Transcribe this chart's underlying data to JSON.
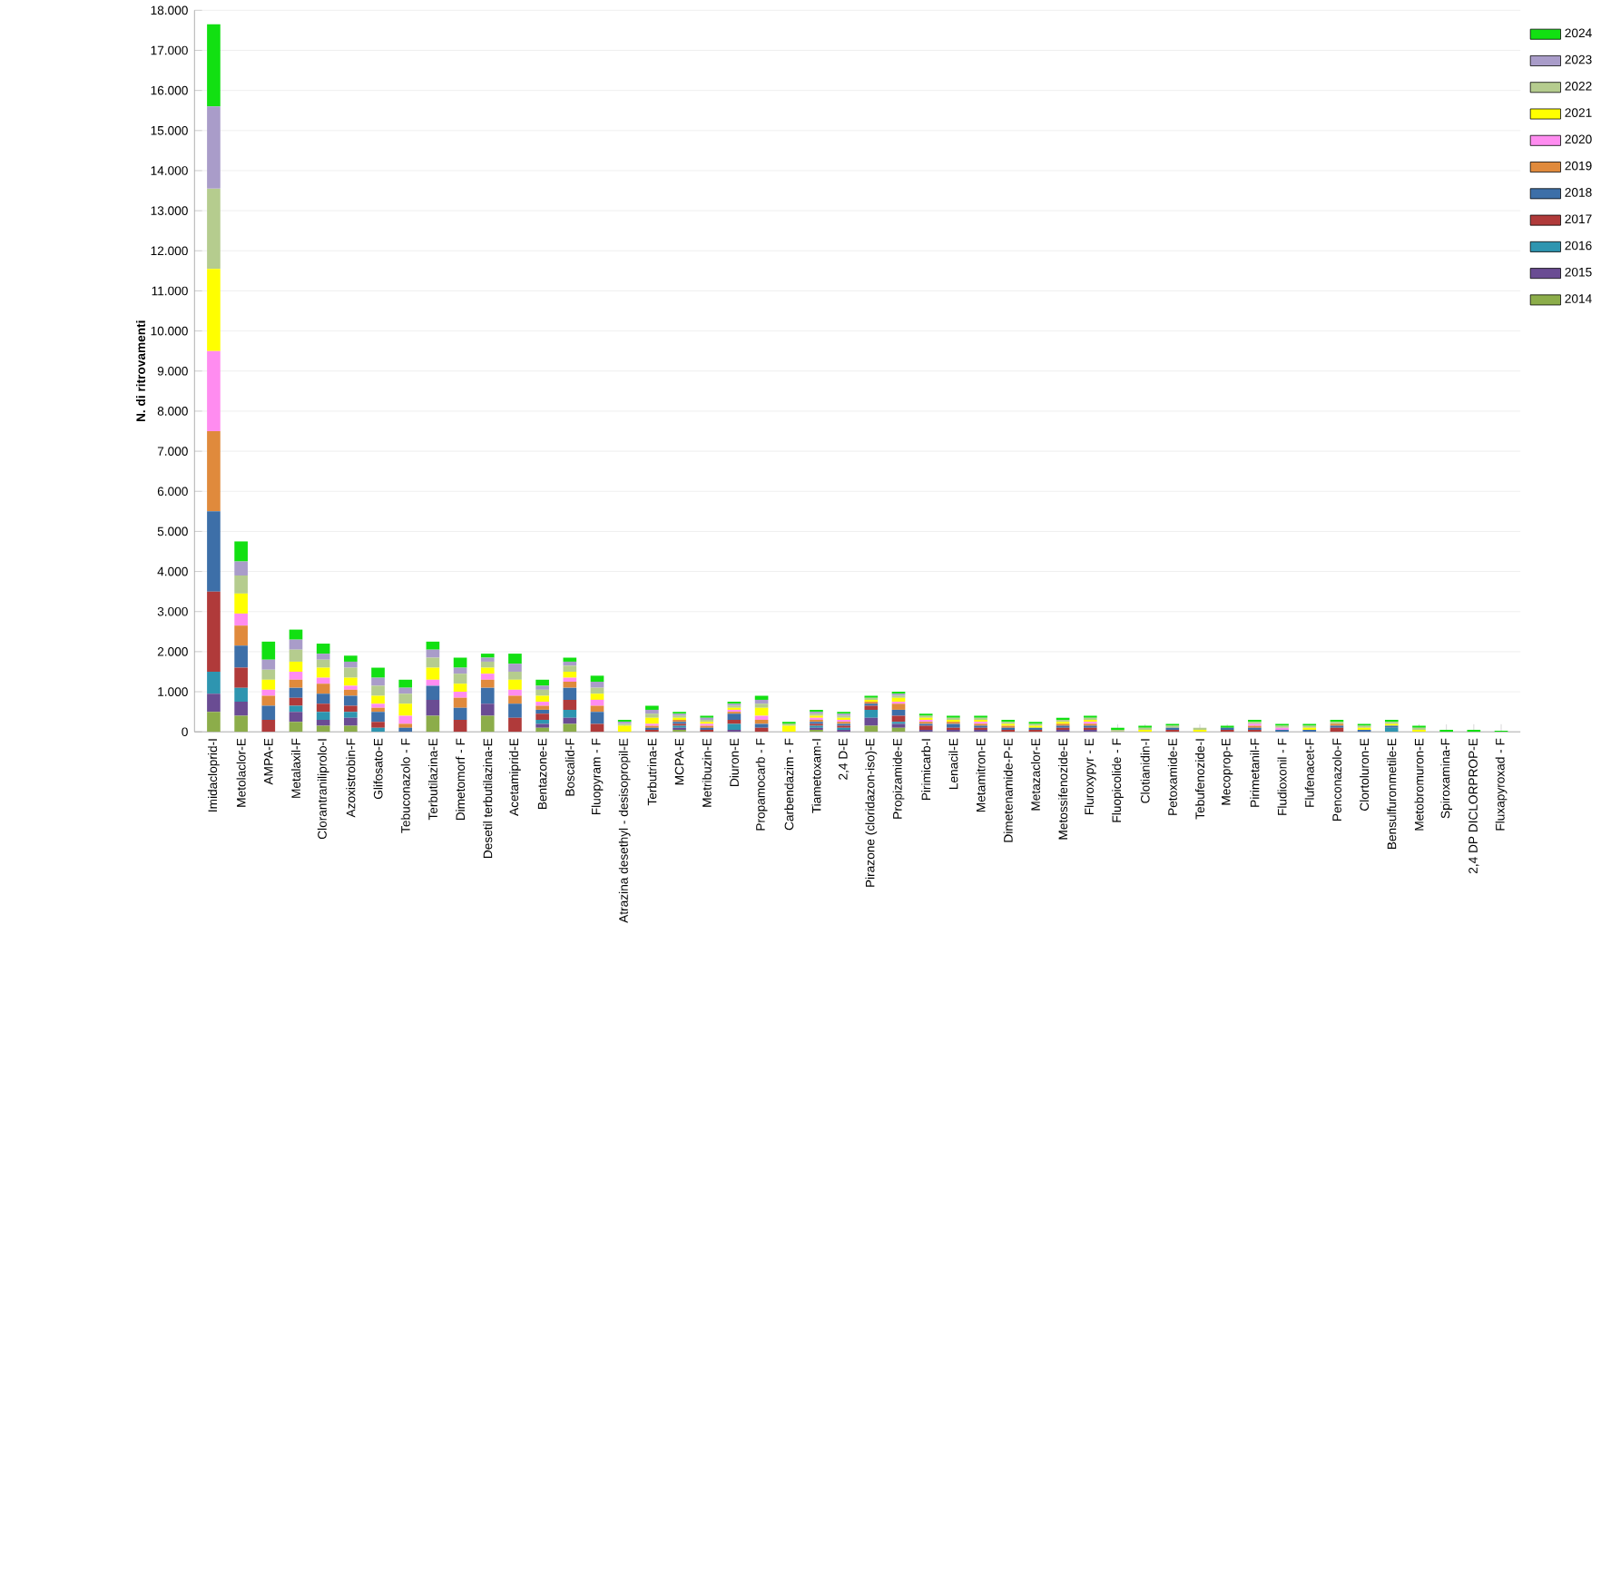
{
  "chart_data": {
    "type": "bar",
    "stacked": true,
    "ylabel": "N. di ritrovamenti",
    "grid": "y",
    "legend": "right",
    "categories": [
      "Imidacloprid-I",
      "Metolaclor-E",
      "AMPA-E",
      "Metalaxil-F",
      "Clorantraniliprolo-I",
      "Azoxistrobin-F",
      "Glifosato-E",
      "Tebuconazolo - F",
      "Terbutilazina-E",
      "Dimetomorf - F",
      "Desetil terbutilazina-E",
      "Acetamiprid-E",
      "Bentazone-E",
      "Boscalid-F",
      "Fluopyram - F",
      "Atrazina desethyl - desisopropil-E",
      "Terbutrina-E",
      "MCPA-E",
      "Metribuzin-E",
      "Diuron-E",
      "Propamocarb - F",
      "Carbendazim - F",
      "Tiametoxam-I",
      "2,4 D-E",
      "Pirazone (cloridazon-iso)-E",
      "Propizamide-E",
      "Pirimicarb-I",
      "Lenacil-E",
      "Metamitron-E",
      "Dimetenamide-P-E",
      "Metazaclor-E",
      "Metossifenozide-E",
      "Fluroxypyr - E",
      "Fluopicolide - F",
      "Clotianidin-I",
      "Petoxamide-E",
      "Tebufenozide-I",
      "Mecoprop-E",
      "Pirimetanil-F",
      "Fludioxonil - F",
      "Flufenacet-F",
      "Penconazolo-F",
      "Clortoluron-E",
      "Bensulfuronmetile-E",
      "Metobromuron-E",
      "Spiroxamina-F",
      "2,4 DP DICLORPROP-E",
      "Fluxapyroxad - F"
    ],
    "ylim": [
      0,
      18000
    ],
    "yticks": [
      0,
      {
        "value": 1000,
        "label": "1.000"
      },
      {
        "value": 2000,
        "label": "2.000"
      },
      {
        "value": 3000,
        "label": "3.000"
      },
      {
        "value": 4000,
        "label": "4.000"
      },
      {
        "value": 5000,
        "label": "5.000"
      },
      {
        "value": 6000,
        "label": "6.000"
      },
      {
        "value": 7000,
        "label": "7.000"
      },
      {
        "value": 8000,
        "label": "8.000"
      },
      {
        "value": 9000,
        "label": "9.000"
      },
      {
        "value": 10000,
        "label": "10.000"
      },
      {
        "value": 11000,
        "label": "11.000"
      },
      {
        "value": 12000,
        "label": "12.000"
      },
      {
        "value": 13000,
        "label": "13.000"
      },
      {
        "value": 14000,
        "label": "14.000"
      },
      {
        "value": 15000,
        "label": "15.000"
      },
      {
        "value": 16000,
        "label": "16.000"
      },
      {
        "value": 17000,
        "label": "17.000"
      },
      {
        "value": 18000,
        "label": "18.000"
      }
    ],
    "series": [
      {
        "name": "2014",
        "color": "#8cad4a",
        "values": [
          500,
          400,
          0,
          250,
          150,
          150,
          0,
          0,
          400,
          0,
          400,
          0,
          100,
          200,
          0,
          0,
          0,
          50,
          0,
          0,
          0,
          0,
          50,
          0,
          150,
          100,
          0,
          0,
          0,
          0,
          0,
          0,
          0,
          0,
          0,
          0,
          0,
          0,
          0,
          0,
          0,
          0,
          0,
          0,
          0,
          0,
          0,
          0
        ]
      },
      {
        "name": "2015",
        "color": "#6a4c93",
        "values": [
          450,
          350,
          0,
          250,
          150,
          200,
          0,
          0,
          400,
          0,
          300,
          0,
          100,
          150,
          0,
          0,
          0,
          50,
          0,
          50,
          0,
          0,
          50,
          50,
          200,
          100,
          50,
          50,
          50,
          0,
          0,
          50,
          50,
          0,
          0,
          0,
          0,
          0,
          0,
          0,
          0,
          0,
          0,
          0,
          0,
          0,
          0,
          0
        ]
      },
      {
        "name": "2016",
        "color": "#2e95b0",
        "values": [
          550,
          350,
          0,
          150,
          200,
          150,
          100,
          0,
          0,
          0,
          0,
          0,
          100,
          200,
          0,
          0,
          0,
          50,
          0,
          150,
          0,
          0,
          50,
          50,
          200,
          50,
          0,
          0,
          0,
          0,
          0,
          0,
          0,
          0,
          0,
          0,
          0,
          0,
          0,
          0,
          0,
          0,
          0,
          100,
          0,
          0,
          0,
          0
        ]
      },
      {
        "name": "2017",
        "color": "#b03a3a",
        "values": [
          2000,
          500,
          300,
          200,
          200,
          150,
          150,
          0,
          0,
          300,
          0,
          350,
          150,
          250,
          200,
          0,
          50,
          50,
          50,
          100,
          100,
          0,
          50,
          50,
          100,
          150,
          100,
          50,
          50,
          50,
          50,
          50,
          50,
          0,
          0,
          50,
          0,
          50,
          50,
          0,
          0,
          100,
          0,
          0,
          0,
          0,
          0,
          0
        ]
      },
      {
        "name": "2018",
        "color": "#3d6fa8",
        "values": [
          2000,
          550,
          350,
          250,
          250,
          250,
          250,
          100,
          350,
          300,
          400,
          350,
          100,
          300,
          300,
          0,
          50,
          50,
          50,
          150,
          100,
          0,
          50,
          50,
          50,
          150,
          50,
          100,
          50,
          50,
          50,
          50,
          50,
          0,
          0,
          50,
          0,
          50,
          50,
          50,
          50,
          50,
          50,
          50,
          0,
          0,
          0,
          0
        ]
      },
      {
        "name": "2019",
        "color": "#e08a3c",
        "values": [
          2000,
          500,
          250,
          200,
          250,
          150,
          100,
          100,
          0,
          250,
          200,
          200,
          100,
          150,
          150,
          0,
          50,
          50,
          50,
          50,
          100,
          0,
          50,
          50,
          50,
          150,
          50,
          50,
          50,
          50,
          0,
          50,
          50,
          0,
          0,
          0,
          0,
          0,
          50,
          0,
          0,
          50,
          0,
          0,
          0,
          0,
          0,
          0
        ]
      },
      {
        "name": "2020",
        "color": "#ff8cf0",
        "values": [
          2000,
          300,
          150,
          200,
          150,
          100,
          100,
          200,
          150,
          150,
          150,
          150,
          100,
          100,
          150,
          0,
          50,
          0,
          50,
          50,
          100,
          0,
          50,
          50,
          0,
          50,
          50,
          0,
          50,
          0,
          0,
          0,
          50,
          0,
          0,
          0,
          0,
          0,
          50,
          50,
          0,
          0,
          0,
          0,
          0,
          0,
          0,
          0
        ]
      },
      {
        "name": "2021",
        "color": "#ffff00",
        "values": [
          2050,
          500,
          250,
          250,
          250,
          200,
          200,
          300,
          300,
          200,
          150,
          250,
          150,
          150,
          150,
          150,
          150,
          50,
          50,
          50,
          200,
          150,
          50,
          50,
          50,
          100,
          50,
          50,
          50,
          50,
          50,
          50,
          50,
          0,
          50,
          0,
          50,
          0,
          0,
          0,
          50,
          0,
          50,
          50,
          50,
          0,
          0,
          0
        ]
      },
      {
        "name": "2022",
        "color": "#b5cc8e",
        "values": [
          2000,
          450,
          250,
          300,
          200,
          250,
          250,
          250,
          250,
          250,
          150,
          200,
          150,
          150,
          150,
          50,
          100,
          50,
          50,
          50,
          100,
          50,
          50,
          50,
          50,
          50,
          50,
          50,
          50,
          50,
          50,
          50,
          50,
          50,
          50,
          50,
          50,
          0,
          50,
          50,
          50,
          50,
          50,
          50,
          50,
          0,
          0,
          0
        ]
      },
      {
        "name": "2023",
        "color": "#a99cc9",
        "values": [
          2050,
          350,
          250,
          250,
          150,
          150,
          200,
          150,
          200,
          150,
          100,
          200,
          100,
          100,
          150,
          50,
          100,
          50,
          50,
          50,
          100,
          0,
          50,
          50,
          0,
          50,
          0,
          0,
          0,
          0,
          0,
          0,
          0,
          0,
          0,
          0,
          0,
          0,
          0,
          0,
          0,
          0,
          0,
          0,
          0,
          0,
          0,
          0
        ]
      },
      {
        "name": "2024",
        "color": "#12e012",
        "values": [
          2050,
          500,
          450,
          250,
          250,
          150,
          250,
          200,
          200,
          250,
          100,
          250,
          150,
          100,
          150,
          50,
          100,
          50,
          50,
          50,
          100,
          50,
          50,
          50,
          50,
          50,
          50,
          50,
          50,
          50,
          50,
          50,
          50,
          50,
          50,
          50,
          0,
          50,
          50,
          50,
          50,
          50,
          50,
          50,
          50,
          50,
          50,
          30
        ]
      }
    ]
  }
}
